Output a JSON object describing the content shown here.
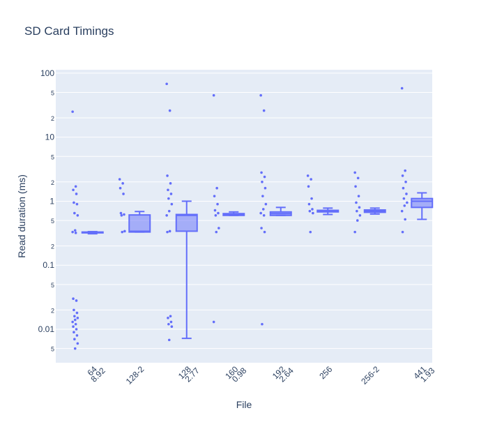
{
  "chart_data": {
    "type": "box",
    "title": "SD Card Timings",
    "x_label": "File",
    "y_label": "Read duration (ms)",
    "color": "#636efa",
    "log_y": true,
    "grid": true,
    "categories": [
      [
        "64",
        "8.92"
      ],
      [
        "128-2"
      ],
      [
        "128",
        "2.77"
      ],
      [
        "160",
        "0.98"
      ],
      [
        "192",
        "2.64"
      ],
      [
        "256"
      ],
      [
        "256-2"
      ],
      [
        "441",
        "1.93"
      ]
    ],
    "boxes": [
      {
        "min": 0.31,
        "q1": 0.32,
        "median": 0.325,
        "q3": 0.33,
        "max": 0.335
      },
      {
        "min": 0.33,
        "q1": 0.33,
        "median": 0.34,
        "q3": 0.61,
        "max": 0.69
      },
      {
        "min": 0.0072,
        "q1": 0.34,
        "median": 0.6,
        "q3": 0.62,
        "max": 1.0
      },
      {
        "min": 0.6,
        "q1": 0.6,
        "median": 0.62,
        "q3": 0.64,
        "max": 0.68
      },
      {
        "min": 0.6,
        "q1": 0.6,
        "median": 0.64,
        "q3": 0.68,
        "max": 0.8
      },
      {
        "min": 0.62,
        "q1": 0.68,
        "median": 0.7,
        "q3": 0.72,
        "max": 0.78
      },
      {
        "min": 0.63,
        "q1": 0.67,
        "median": 0.7,
        "q3": 0.73,
        "max": 0.78
      },
      {
        "min": 0.52,
        "q1": 0.8,
        "median": 1.0,
        "q3": 1.1,
        "max": 1.35
      }
    ],
    "points": [
      [
        25,
        1.7,
        1.5,
        1.3,
        0.95,
        0.9,
        0.65,
        0.6,
        0.35,
        0.33,
        0.32,
        0.03,
        0.028,
        0.02,
        0.018,
        0.016,
        0.015,
        0.014,
        0.013,
        0.012,
        0.011,
        0.01,
        0.009,
        0.008,
        0.007,
        0.006,
        0.005
      ],
      [
        2.2,
        1.9,
        1.6,
        1.3,
        0.65,
        0.62,
        0.6,
        0.34,
        0.33
      ],
      [
        68,
        26,
        2.5,
        1.9,
        1.5,
        1.3,
        1.1,
        0.9,
        0.7,
        0.6,
        0.34,
        0.33,
        0.016,
        0.015,
        0.013,
        0.012,
        0.011,
        0.0068
      ],
      [
        45,
        1.6,
        1.2,
        0.9,
        0.72,
        0.65,
        0.6,
        0.38,
        0.33,
        0.013
      ],
      [
        45,
        26,
        2.8,
        2.4,
        2,
        1.6,
        1.2,
        0.9,
        0.75,
        0.65,
        0.6,
        0.38,
        0.33,
        0.012
      ],
      [
        2.5,
        2.2,
        1.7,
        1.1,
        0.9,
        0.75,
        0.7,
        0.65,
        0.33
      ],
      [
        2.8,
        2.3,
        1.7,
        1.2,
        0.95,
        0.8,
        0.7,
        0.6,
        0.5,
        0.33
      ],
      [
        58,
        3,
        2.5,
        2,
        1.6,
        1.3,
        1.1,
        0.95,
        0.85,
        0.7,
        0.52,
        0.33
      ]
    ],
    "ylim": [
      0.003,
      113
    ],
    "yticks": [
      {
        "value": 0.005,
        "label": "5"
      },
      0.01,
      {
        "value": 0.02,
        "label": "2"
      },
      {
        "value": 0.05,
        "label": "5"
      },
      0.1,
      {
        "value": 0.2,
        "label": "2"
      },
      {
        "value": 0.5,
        "label": "5"
      },
      1,
      {
        "value": 2,
        "label": "2"
      },
      {
        "value": 5,
        "label": "5"
      },
      10,
      {
        "value": 20,
        "label": "2"
      },
      {
        "value": 50,
        "label": "5"
      },
      100
    ]
  }
}
